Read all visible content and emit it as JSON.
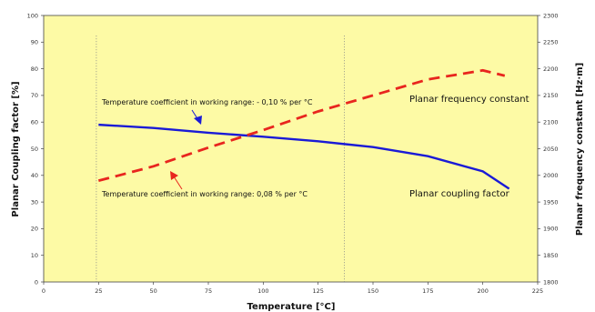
{
  "chart_data": {
    "type": "line",
    "xlabel": "Temperature [°C]",
    "ylabel_left": "Planar Coupling factor  [%]",
    "ylabel_right": "Planar frequency constant  [Hz·m]",
    "xlim": [
      0,
      225
    ],
    "ylim_left": [
      0,
      100
    ],
    "ylim_right": [
      1800,
      2300
    ],
    "x_ticks": [
      0,
      25,
      50,
      75,
      100,
      125,
      150,
      175,
      200,
      225
    ],
    "y_ticks_left": [
      0,
      10,
      20,
      30,
      40,
      50,
      60,
      70,
      80,
      90,
      100
    ],
    "y_ticks_right": [
      1800,
      1850,
      1900,
      1950,
      2000,
      2050,
      2100,
      2150,
      2200,
      2250,
      2300
    ],
    "working_range_markers_x": [
      24,
      137
    ],
    "series": [
      {
        "axis": "left",
        "x": [
          25,
          50,
          75,
          100,
          125,
          150,
          175,
          200,
          212
        ],
        "y": [
          59,
          57.8,
          56,
          54.5,
          52.8,
          50.6,
          47.2,
          41.5,
          35
        ]
      },
      {
        "axis": "right",
        "x": [
          25,
          50,
          75,
          100,
          125,
          150,
          175,
          200,
          210
        ],
        "y": [
          1990,
          2017,
          2052,
          2085,
          2120,
          2150,
          2180,
          2197,
          2187
        ]
      }
    ],
    "annotations": [
      {
        "text": "Temperature coefficient in working range:  - 0,10 % per °C"
      },
      {
        "text": "Temperature coefficient in working range:  0,08 % per °C"
      },
      {
        "text": "Planar frequency constant"
      },
      {
        "text": "Planar coupling factor"
      }
    ],
    "colors": {
      "background": "#fdfaa5",
      "coupling": "#1a1ad6",
      "frequency": "#e8251e"
    }
  }
}
